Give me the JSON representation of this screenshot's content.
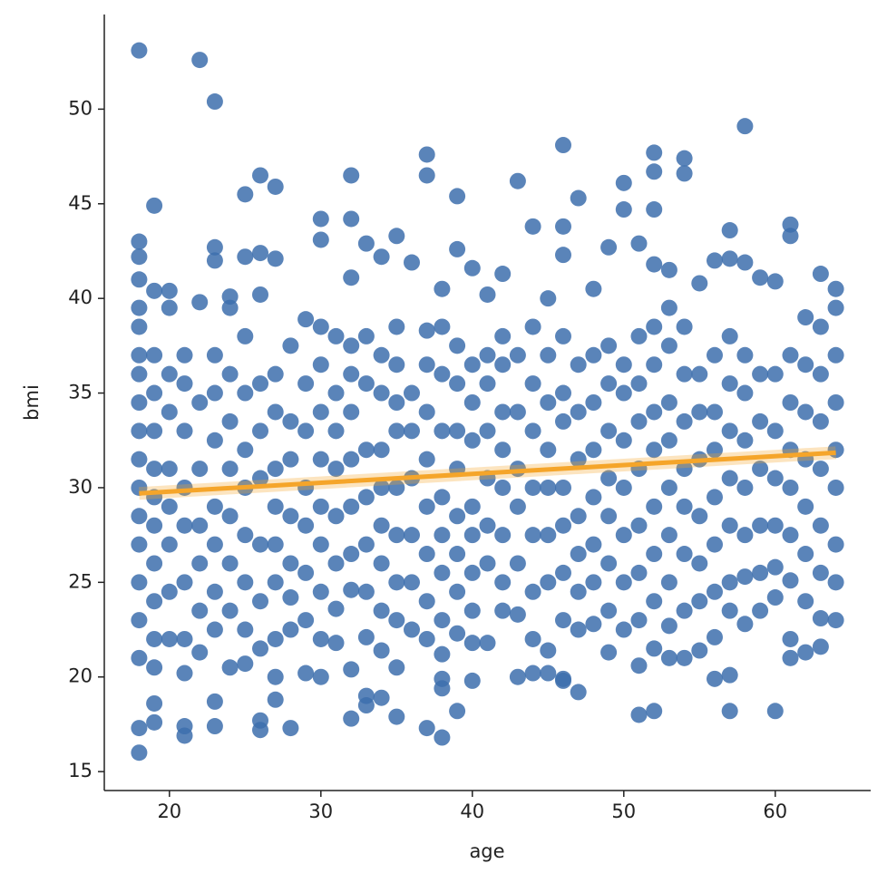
{
  "chart_data": {
    "type": "scatter",
    "x_label": "age",
    "y_label": "bmi",
    "xlim": [
      15.7,
      66.3
    ],
    "ylim": [
      14,
      55
    ],
    "xticks": [
      20,
      30,
      40,
      50,
      60
    ],
    "yticks": [
      15,
      20,
      25,
      30,
      35,
      40,
      45,
      50
    ],
    "series": [
      {
        "color": "#3d6fad",
        "x": [
          18,
          22,
          23,
          58,
          18,
          38,
          21,
          46,
          37,
          52,
          54,
          25,
          26,
          27,
          32,
          37,
          39,
          43,
          47,
          50,
          50,
          52,
          52,
          54,
          19,
          30,
          32,
          44,
          46,
          57,
          61,
          61,
          30,
          18,
          18,
          23,
          23,
          25,
          26,
          27,
          33,
          34,
          35,
          36,
          39,
          40,
          42,
          46,
          49,
          51,
          52,
          53,
          56,
          57,
          58,
          59,
          60,
          63,
          64,
          18,
          19,
          20,
          24,
          26,
          32,
          38,
          41,
          45,
          48,
          55,
          18,
          19,
          19,
          21,
          23,
          23,
          26,
          26,
          27,
          28,
          32,
          33,
          33,
          34,
          35,
          37,
          38,
          38,
          39,
          40,
          46,
          47,
          51,
          52,
          56,
          57,
          60,
          57,
          18,
          18,
          18,
          18,
          18,
          18,
          18,
          18,
          18,
          18,
          18,
          18,
          18,
          19,
          19,
          19,
          19,
          19,
          19,
          19,
          19,
          19,
          19,
          20,
          20,
          20,
          20,
          20,
          20,
          20,
          20,
          21,
          21,
          21,
          21,
          21,
          21,
          21,
          21,
          22,
          22,
          22,
          22,
          22,
          22,
          22,
          23,
          23,
          23,
          23,
          23,
          23,
          23,
          24,
          24,
          24,
          24,
          24,
          24,
          24,
          24,
          25,
          25,
          25,
          25,
          25,
          25,
          25,
          25,
          26,
          26,
          26,
          26,
          26,
          26,
          27,
          27,
          27,
          27,
          27,
          27,
          27,
          27,
          28,
          28,
          28,
          28,
          28,
          28,
          28,
          29,
          29,
          29,
          29,
          29,
          29,
          29,
          29,
          30,
          30,
          30,
          30,
          30,
          30,
          30,
          30,
          30,
          31,
          31,
          31,
          31,
          31,
          31,
          31,
          31,
          32,
          32,
          32,
          32,
          32,
          32,
          32,
          32,
          33,
          33,
          33,
          33,
          33,
          33,
          33,
          34,
          34,
          34,
          34,
          34,
          34,
          34,
          34,
          35,
          35,
          35,
          35,
          35,
          35,
          35,
          35,
          35,
          36,
          36,
          36,
          36,
          36,
          36,
          37,
          37,
          37,
          37,
          37,
          37,
          37,
          37,
          38,
          38,
          38,
          38,
          38,
          38,
          38,
          38,
          39,
          39,
          39,
          39,
          39,
          39,
          39,
          39,
          40,
          40,
          40,
          40,
          40,
          40,
          40,
          40,
          41,
          41,
          41,
          41,
          41,
          41,
          41,
          42,
          42,
          42,
          42,
          42,
          42,
          42,
          42,
          43,
          43,
          43,
          43,
          43,
          43,
          43,
          44,
          44,
          44,
          44,
          44,
          44,
          44,
          44,
          45,
          45,
          45,
          45,
          45,
          45,
          45,
          45,
          46,
          46,
          46,
          46,
          46,
          46,
          46,
          46,
          47,
          47,
          47,
          47,
          47,
          47,
          47,
          48,
          48,
          48,
          48,
          48,
          48,
          48,
          49,
          49,
          49,
          49,
          49,
          49,
          49,
          49,
          50,
          50,
          50,
          50,
          50,
          50,
          50,
          51,
          51,
          51,
          51,
          51,
          51,
          51,
          51,
          52,
          52,
          52,
          52,
          52,
          52,
          52,
          52,
          53,
          53,
          53,
          53,
          53,
          53,
          53,
          53,
          53,
          54,
          54,
          54,
          54,
          54,
          54,
          54,
          54,
          55,
          55,
          55,
          55,
          55,
          55,
          55,
          56,
          56,
          56,
          56,
          56,
          56,
          56,
          57,
          57,
          57,
          57,
          57,
          57,
          57,
          58,
          58,
          58,
          58,
          58,
          58,
          58,
          59,
          59,
          59,
          59,
          59,
          59,
          60,
          60,
          60,
          60,
          60,
          60,
          61,
          61,
          61,
          61,
          61,
          61,
          61,
          61,
          62,
          62,
          62,
          62,
          62,
          62,
          62,
          62,
          63,
          63,
          63,
          63,
          63,
          63,
          63,
          63,
          64,
          64,
          64,
          64,
          64,
          64,
          64,
          64
        ],
        "values": [
          53.1,
          52.6,
          50.4,
          49.1,
          16.0,
          16.8,
          16.9,
          48.1,
          47.6,
          47.7,
          47.4,
          45.5,
          46.5,
          45.9,
          46.5,
          46.5,
          45.4,
          46.2,
          45.3,
          46.1,
          44.7,
          46.7,
          44.7,
          46.6,
          44.9,
          44.2,
          44.2,
          43.8,
          43.8,
          43.6,
          43.9,
          43.3,
          43.1,
          43.0,
          42.2,
          42.7,
          42.0,
          42.2,
          42.4,
          42.1,
          42.9,
          42.2,
          43.3,
          41.9,
          42.6,
          41.6,
          41.3,
          42.3,
          42.7,
          42.9,
          41.8,
          41.5,
          42.0,
          42.1,
          41.9,
          41.1,
          40.9,
          41.3,
          40.5,
          41.0,
          40.4,
          40.4,
          40.1,
          40.2,
          41.1,
          40.5,
          40.2,
          40.0,
          40.5,
          40.8,
          17.3,
          17.6,
          18.6,
          17.4,
          17.4,
          18.7,
          17.2,
          17.7,
          18.8,
          17.3,
          17.8,
          18.5,
          19.0,
          18.9,
          17.9,
          17.3,
          19.4,
          19.9,
          18.2,
          19.8,
          19.8,
          19.2,
          18.0,
          18.2,
          19.9,
          18.2,
          18.2,
          20.1,
          21,
          23,
          25,
          27,
          28.5,
          30,
          31.5,
          33,
          34.5,
          36,
          37,
          38.5,
          39.5,
          20.5,
          22,
          24,
          26,
          28,
          29.5,
          31,
          33,
          35,
          37,
          22,
          24.5,
          27,
          29,
          31,
          34,
          36,
          39.5,
          20.2,
          22,
          25,
          28,
          30,
          33,
          35.5,
          37,
          21.3,
          23.5,
          26,
          28,
          31,
          34.5,
          39.8,
          22.5,
          24.5,
          27,
          29,
          32.5,
          35,
          37,
          20.5,
          23.5,
          26,
          28.5,
          31,
          33.5,
          36,
          39.5,
          20.7,
          22.5,
          25,
          27.5,
          30,
          32,
          35,
          38,
          21.5,
          24,
          27,
          30.5,
          33,
          35.5,
          20,
          22,
          25,
          27,
          29,
          31,
          34,
          36,
          22.5,
          24.2,
          26,
          28.5,
          31.5,
          33.5,
          37.5,
          20.2,
          23,
          25.5,
          28,
          30,
          33,
          35.5,
          38.9,
          20,
          22,
          24.5,
          27,
          29,
          31.5,
          34,
          36.5,
          38.5,
          21.8,
          23.6,
          26,
          28.5,
          31,
          33,
          35,
          38,
          20.4,
          24.6,
          26.5,
          29,
          31.5,
          34,
          36,
          37.5,
          22.1,
          24.5,
          27,
          29.5,
          32,
          35.5,
          38,
          21.4,
          23.5,
          26,
          28,
          30,
          32,
          35,
          37,
          20.5,
          23,
          25,
          27.5,
          30,
          33,
          34.5,
          36.5,
          38.5,
          22.5,
          25,
          27.5,
          30.5,
          33,
          35,
          22,
          24,
          26.5,
          29,
          31.5,
          34,
          36.5,
          38.3,
          21.2,
          23,
          25.5,
          27.5,
          29.5,
          33,
          36,
          38.5,
          22.3,
          24.5,
          26.5,
          28.5,
          31,
          33,
          35.5,
          37.5,
          21.8,
          23.5,
          25.5,
          27.5,
          29,
          32.5,
          34.5,
          36.5,
          21.8,
          26,
          28,
          30.5,
          33,
          35.5,
          37,
          23.5,
          25,
          27.5,
          30,
          32,
          34,
          36.5,
          38,
          20,
          23.3,
          26,
          29,
          31,
          34,
          37,
          20.2,
          22,
          24.5,
          27.5,
          30,
          33,
          35.5,
          38.5,
          20.2,
          21.4,
          25,
          27.5,
          30,
          32,
          34.5,
          37,
          19.9,
          23,
          25.5,
          28,
          30,
          33.5,
          35,
          38,
          22.5,
          24.5,
          26.5,
          28.5,
          31.5,
          34,
          36.5,
          22.8,
          25,
          27,
          29.5,
          32,
          34.5,
          37,
          21.3,
          23.5,
          26,
          28.5,
          30.5,
          33,
          35.5,
          37.5,
          22.5,
          25,
          27.5,
          30,
          32.5,
          35,
          36.5,
          20.6,
          23,
          25.5,
          28,
          31,
          33.5,
          35.5,
          38,
          21.5,
          24,
          26.5,
          29,
          32,
          34,
          36.5,
          38.5,
          21,
          22.7,
          25,
          27.5,
          30,
          32.5,
          34.5,
          37.5,
          39.5,
          21,
          23.5,
          26.5,
          29,
          31,
          33.5,
          36,
          38.5,
          21.4,
          24,
          26,
          28.5,
          31.5,
          34,
          36,
          22.1,
          24.5,
          27,
          29.5,
          32,
          34,
          37,
          23.5,
          25,
          28,
          30.5,
          33,
          35.5,
          38,
          22.8,
          25.3,
          27.5,
          30,
          32.5,
          35,
          37,
          23.5,
          25.5,
          28,
          31,
          33.5,
          36,
          24.2,
          25.8,
          28,
          30.5,
          33,
          36,
          21,
          22,
          25.1,
          27.5,
          30,
          32,
          34.5,
          37,
          21.3,
          24,
          26.5,
          29,
          31.5,
          34,
          36.5,
          39,
          21.6,
          23.1,
          25.5,
          28,
          31,
          33.5,
          36,
          38.5,
          23,
          25,
          27,
          30,
          32,
          34.5,
          37,
          39.5
        ]
      }
    ],
    "regression": {
      "color": "#f5a52a",
      "x": [
        18,
        64
      ],
      "values": [
        29.7,
        31.85
      ]
    }
  }
}
